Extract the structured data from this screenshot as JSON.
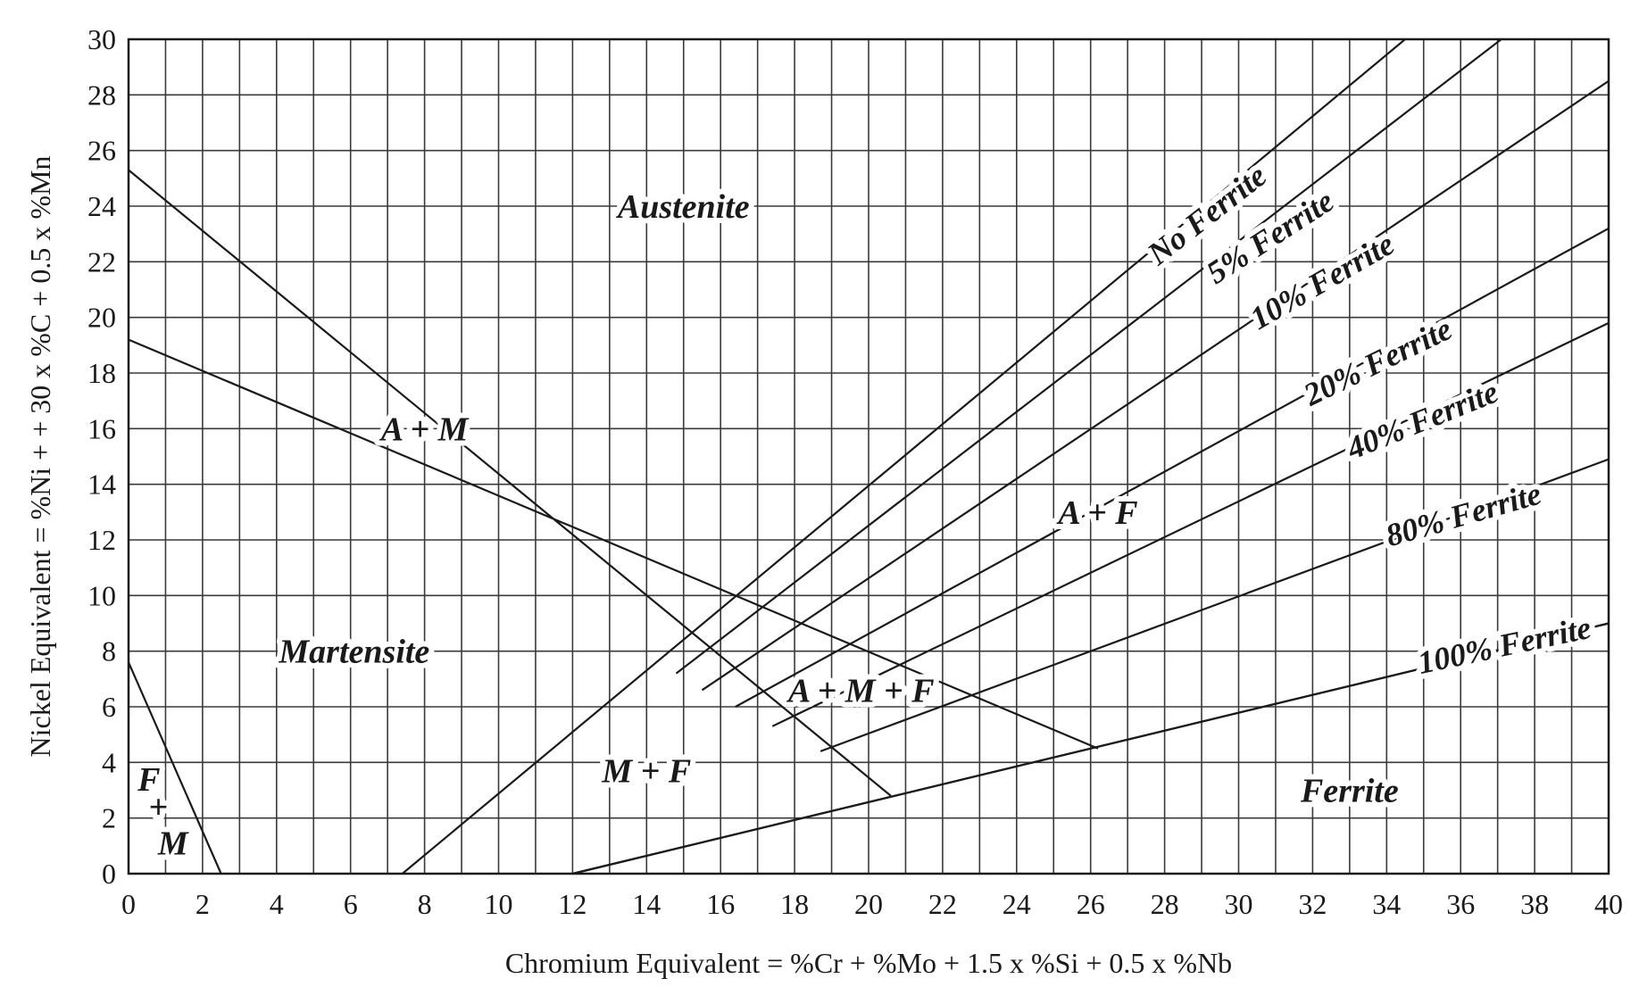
{
  "chart_data": {
    "type": "line",
    "title": "",
    "xlabel": "Chromium Equivalent = %Cr + %Mo + 1.5 x %Si + 0.5 x %Nb",
    "ylabel": "Nickel Equivalent = %Ni + + 30 x %C + 0.5 x %Mn",
    "xlim": [
      0,
      40
    ],
    "ylim": [
      0,
      30
    ],
    "xticks": [
      "0",
      "2",
      "4",
      "6",
      "8",
      "10",
      "12",
      "14",
      "16",
      "18",
      "20",
      "22",
      "24",
      "26",
      "28",
      "30",
      "32",
      "34",
      "36",
      "38",
      "40"
    ],
    "yticks": [
      "0",
      "2",
      "4",
      "6",
      "8",
      "10",
      "12",
      "14",
      "16",
      "18",
      "20",
      "22",
      "24",
      "26",
      "28",
      "30"
    ],
    "grid": true,
    "series": [
      {
        "name": "",
        "x": [
          0,
          20.6
        ],
        "y": [
          25.3,
          2.8
        ]
      },
      {
        "name": "",
        "x": [
          0,
          26.2
        ],
        "y": [
          19.2,
          4.5
        ]
      },
      {
        "name": "",
        "x": [
          0,
          2.5
        ],
        "y": [
          7.6,
          0
        ]
      },
      {
        "name": "",
        "x": [
          12,
          40
        ],
        "y": [
          0,
          9
        ]
      },
      {
        "name": "No Ferrite",
        "x": [
          7.4,
          34.5
        ],
        "y": [
          0,
          30
        ]
      },
      {
        "name": "5% Ferrite",
        "x": [
          14.8,
          37.1
        ],
        "y": [
          7.2,
          30
        ]
      },
      {
        "name": "10% Ferrite",
        "x": [
          15.5,
          40
        ],
        "y": [
          6.6,
          28.5
        ]
      },
      {
        "name": "20% Ferrite",
        "x": [
          16.4,
          40
        ],
        "y": [
          6.0,
          23.2
        ]
      },
      {
        "name": "40% Ferrite",
        "x": [
          17.4,
          40
        ],
        "y": [
          5.3,
          19.8
        ]
      },
      {
        "name": "80% Ferrite",
        "x": [
          18.7,
          40
        ],
        "y": [
          4.4,
          14.9
        ]
      },
      {
        "name": "100% Ferrite",
        "x": [
          12,
          40
        ],
        "y": [
          0,
          9
        ]
      }
    ],
    "region_labels": [
      {
        "text": "Austenite",
        "x": 15,
        "y": 24
      },
      {
        "text": "A + M",
        "x": 8,
        "y": 16
      },
      {
        "text": "Martensite",
        "x": 6.1,
        "y": 8
      },
      {
        "text": "M + F",
        "x": 14,
        "y": 3.7
      },
      {
        "text": "A + M + F",
        "x": 19.8,
        "y": 6.6
      },
      {
        "text": "A + F",
        "x": 26.2,
        "y": 13
      },
      {
        "text": "Ferrite",
        "x": 33,
        "y": 3
      },
      {
        "text": "F",
        "x": 0.55,
        "y": 3.4
      },
      {
        "text": "+",
        "x": 0.8,
        "y": 2.4
      },
      {
        "text": "M",
        "x": 1.2,
        "y": 1.1
      }
    ],
    "ferrite_labels": [
      {
        "text": "No Ferrite",
        "x": 29.2,
        "y": 23.6,
        "angle": -38
      },
      {
        "text": "5% Ferrite",
        "x": 30.9,
        "y": 22.8,
        "angle": -33
      },
      {
        "text": "10% Ferrite",
        "x": 32.3,
        "y": 21.2,
        "angle": -30
      },
      {
        "text": "20% Ferrite",
        "x": 33.8,
        "y": 18.3,
        "angle": -26
      },
      {
        "text": "40% Ferrite",
        "x": 35.0,
        "y": 16.2,
        "angle": -22
      },
      {
        "text": "80% Ferrite",
        "x": 36.1,
        "y": 12.8,
        "angle": -16
      },
      {
        "text": "100% Ferrite",
        "x": 37.2,
        "y": 8.1,
        "angle": -12
      }
    ]
  }
}
